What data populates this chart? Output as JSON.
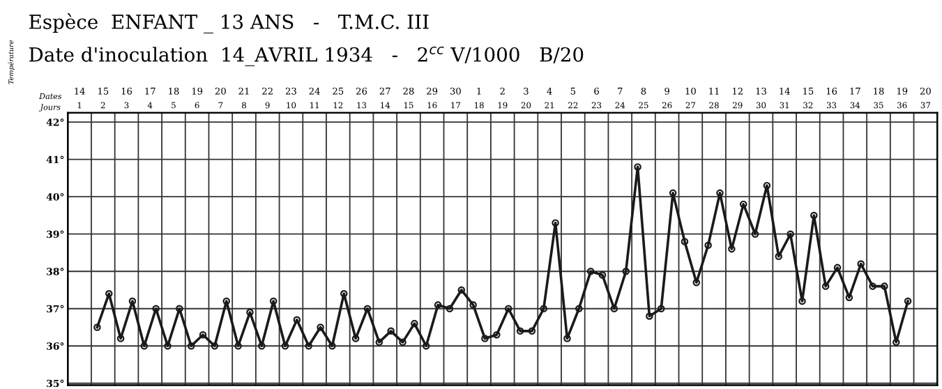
{
  "chart_data": {
    "type": "line",
    "title": "Espèce  ENFANT _ 13 ANS   -   T.M.C. III",
    "subtitle": "Date d'inoculation  14_AVRIL 1934   -   2$^{cc}$ V/1000   B/20",
    "xlabel": "Jours",
    "x2label": "Dates",
    "ylabel": "Température",
    "xlim": [
      0.5,
      37.5
    ],
    "ylim": [
      34.95,
      42.25
    ],
    "xticks": [
      {
        "value": 0.5,
        "label": null
      },
      1,
      {
        "value": 1.5,
        "label": null
      },
      2,
      {
        "value": 2.5,
        "label": null
      },
      3,
      {
        "value": 3.5,
        "label": null
      },
      4,
      {
        "value": 4.5,
        "label": null
      },
      5,
      {
        "value": 5.5,
        "label": null
      },
      6,
      {
        "value": 6.5,
        "label": null
      },
      7,
      {
        "value": 7.5,
        "label": null
      },
      8,
      {
        "value": 8.5,
        "label": null
      },
      9,
      {
        "value": 9.5,
        "label": null
      },
      10,
      {
        "value": 10.5,
        "label": null
      },
      11,
      {
        "value": 11.5,
        "label": null
      },
      12,
      {
        "value": 12.5,
        "label": null
      },
      13,
      {
        "value": 13.5,
        "label": null
      },
      14,
      {
        "value": 14.5,
        "label": null
      },
      15,
      {
        "value": 15.5,
        "label": null
      },
      16,
      {
        "value": 16.5,
        "label": null
      },
      17,
      {
        "value": 17.5,
        "label": null
      },
      18,
      {
        "value": 18.5,
        "label": null
      },
      19,
      {
        "value": 19.5,
        "label": null
      },
      20,
      {
        "value": 20.5,
        "label": null
      },
      21,
      {
        "value": 21.5,
        "label": null
      },
      22,
      {
        "value": 22.5,
        "label": null
      },
      23,
      {
        "value": 23.5,
        "label": null
      },
      24,
      {
        "value": 24.5,
        "label": null
      },
      25,
      {
        "value": 25.5,
        "label": null
      },
      26,
      {
        "value": 26.5,
        "label": null
      },
      27,
      {
        "value": 27.5,
        "label": null
      },
      28,
      {
        "value": 28.5,
        "label": null
      },
      29,
      {
        "value": 29.5,
        "label": null
      },
      30,
      {
        "value": 30.5,
        "label": null
      },
      31,
      {
        "value": 31.5,
        "label": null
      },
      32,
      {
        "value": 32.5,
        "label": null
      },
      33,
      {
        "value": 33.5,
        "label": null
      },
      34,
      {
        "value": 34.5,
        "label": null
      },
      35,
      {
        "value": 35.5,
        "label": null
      },
      36,
      {
        "value": 36.5,
        "label": null
      },
      37,
      {
        "value": 37.5,
        "label": null
      }
    ],
    "x2lim": [
      "1934-04-13T12:00",
      "1934-05-20T12:00"
    ],
    "x2ticks": [
      {
        "value": "1934-04-14",
        "label": "14"
      },
      {
        "value": "1934-04-15",
        "label": "15"
      },
      {
        "value": "1934-04-16",
        "label": "16"
      },
      {
        "value": "1934-04-17",
        "label": "17"
      },
      {
        "value": "1934-04-18",
        "label": "18"
      },
      {
        "value": "1934-04-19",
        "label": "19"
      },
      {
        "value": "1934-04-20",
        "label": "20"
      },
      {
        "value": "1934-04-21",
        "label": "21"
      },
      {
        "value": "1934-04-22",
        "label": "22"
      },
      {
        "value": "1934-04-23",
        "label": "23"
      },
      {
        "value": "1934-04-24",
        "label": "24"
      },
      {
        "value": "1934-04-25",
        "label": "25"
      },
      {
        "value": "1934-04-26",
        "label": "26"
      },
      {
        "value": "1934-04-27",
        "label": "27"
      },
      {
        "value": "1934-04-28",
        "label": "28"
      },
      {
        "value": "1934-04-29",
        "label": "29"
      },
      {
        "value": "1934-04-30",
        "label": "30"
      },
      {
        "value": "1934-05-01",
        "label": "1"
      },
      {
        "value": "1934-05-02",
        "label": "2"
      },
      {
        "value": "1934-05-03",
        "label": "3"
      },
      {
        "value": "1934-05-04",
        "label": "4"
      },
      {
        "value": "1934-05-05",
        "label": "5"
      },
      {
        "value": "1934-05-06",
        "label": "6"
      },
      {
        "value": "1934-05-07",
        "label": "7"
      },
      {
        "value": "1934-05-08",
        "label": "8"
      },
      {
        "value": "1934-05-09",
        "label": "9"
      },
      {
        "value": "1934-05-10",
        "label": "10"
      },
      {
        "value": "1934-05-11",
        "label": "11"
      },
      {
        "value": "1934-05-12",
        "label": "12"
      },
      {
        "value": "1934-05-13",
        "label": "13"
      },
      {
        "value": "1934-05-14",
        "label": "14"
      },
      {
        "value": "1934-05-15",
        "label": "15"
      },
      {
        "value": "1934-05-16",
        "label": "16"
      },
      {
        "value": "1934-05-17",
        "label": "17"
      },
      {
        "value": "1934-05-18",
        "label": "18"
      },
      {
        "value": "1934-05-19",
        "label": "19"
      },
      {
        "value": "1934-05-20",
        "label": "20"
      }
    ],
    "yticks": [
      {
        "value": 35,
        "label": "35°"
      },
      {
        "value": 36,
        "label": "36°"
      },
      {
        "value": 37,
        "label": "37°"
      },
      {
        "value": 38,
        "label": "38°"
      },
      {
        "value": 39,
        "label": "39°"
      },
      {
        "value": 40,
        "label": "40°"
      },
      {
        "value": 41,
        "label": "41°"
      },
      {
        "value": 42,
        "label": "42°"
      }
    ],
    "grid": true,
    "marker": "circle",
    "line_style": "solid",
    "series": [
      {
        "color": "#1a1a1a",
        "x": [
          1.75,
          2.25,
          2.75,
          3.25,
          3.75,
          4.25,
          4.75,
          5.25,
          5.75,
          6.25,
          6.75,
          7.25,
          7.75,
          8.25,
          8.75,
          9.25,
          9.75,
          10.25,
          10.75,
          11.25,
          11.75,
          12.25,
          12.75,
          13.25,
          13.75,
          14.25,
          14.75,
          15.25,
          15.75,
          16.25,
          16.75,
          17.25,
          17.75,
          18.25,
          18.75,
          19.25,
          19.75,
          20.25,
          20.75,
          21.25,
          21.75,
          22.25,
          22.75,
          23.25,
          23.75,
          24.25,
          24.75,
          25.25,
          25.75,
          26.25,
          26.75,
          27.25,
          27.75,
          28.25,
          28.75,
          29.25,
          29.75,
          30.25,
          30.75,
          31.25,
          31.75,
          32.25,
          32.75,
          33.25,
          33.75,
          34.25,
          34.75,
          35.25,
          35.75,
          36.25
        ],
        "values": [
          36.5,
          37.4,
          36.2,
          37.2,
          36.0,
          37.0,
          36.0,
          37.0,
          36.0,
          36.3,
          36.0,
          37.2,
          36.0,
          36.9,
          36.0,
          37.2,
          36.0,
          36.7,
          36.0,
          36.5,
          36.0,
          37.4,
          36.2,
          37.0,
          36.1,
          36.4,
          36.1,
          36.6,
          36.0,
          37.1,
          37.0,
          37.5,
          37.1,
          36.2,
          36.3,
          37.0,
          36.4,
          36.4,
          37.0,
          39.3,
          36.2,
          37.0,
          38.0,
          37.9,
          37.0,
          38.0,
          40.8,
          36.8,
          37.0,
          40.1,
          38.8,
          37.7,
          38.7,
          40.1,
          38.6,
          39.8,
          39.0,
          40.3,
          38.4,
          39.0,
          37.2,
          39.5,
          37.6,
          38.1,
          37.3,
          38.2,
          37.6,
          37.6,
          36.1,
          37.2
        ]
      }
    ]
  }
}
